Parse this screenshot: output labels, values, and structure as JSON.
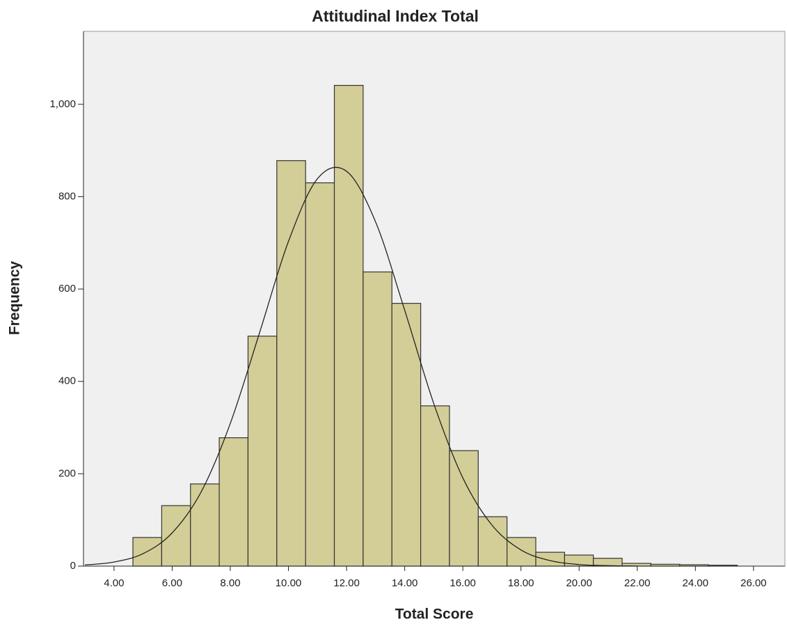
{
  "chart_data": {
    "type": "histogram",
    "title": "Attitudinal Index Total",
    "x_label": "Total Score",
    "y_label": "Frequency",
    "bins": [
      4.65,
      5.64,
      6.63,
      7.62,
      8.61,
      9.6,
      10.59,
      11.58,
      12.57,
      13.56,
      14.55,
      15.54,
      16.53,
      17.52,
      18.51,
      19.5,
      20.49,
      21.48,
      22.47,
      23.46,
      24.45,
      25.44
    ],
    "values": [
      62,
      131,
      178,
      278,
      498,
      878,
      830,
      1041,
      637,
      569,
      347,
      250,
      107,
      62,
      30,
      24,
      17,
      6,
      4,
      3,
      2
    ],
    "color": "#d3ce97",
    "curve": {
      "x": [
        3,
        4,
        5,
        6,
        7,
        8,
        9,
        10,
        11,
        12,
        13,
        14,
        15,
        16,
        17,
        18,
        19,
        20,
        21,
        22
      ],
      "values": [
        2.5,
        8.9,
        27,
        72,
        161,
        309,
        504,
        703,
        839,
        855,
        745,
        554,
        352,
        191,
        89,
        35,
        12,
        3.4,
        1,
        0.2
      ]
    },
    "xlim": [
      2.95,
      27.08
    ],
    "ylim": [
      0,
      1158
    ],
    "xticks": [
      {
        "value": 4,
        "label": "4.00"
      },
      {
        "value": 6,
        "label": "6.00"
      },
      {
        "value": 8,
        "label": "8.00"
      },
      {
        "value": 10,
        "label": "10.00"
      },
      {
        "value": 12,
        "label": "12.00"
      },
      {
        "value": 14,
        "label": "14.00"
      },
      {
        "value": 16,
        "label": "16.00"
      },
      {
        "value": 18,
        "label": "18.00"
      },
      {
        "value": 20,
        "label": "20.00"
      },
      {
        "value": 22,
        "label": "22.00"
      },
      {
        "value": 24,
        "label": "24.00"
      },
      {
        "value": 26,
        "label": "26.00"
      }
    ],
    "yticks": [
      0,
      200,
      400,
      600,
      800,
      {
        "value": 1000,
        "label": "1,000"
      }
    ],
    "grid": false
  }
}
